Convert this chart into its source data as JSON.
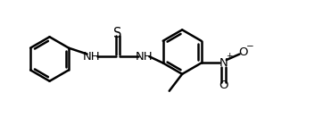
{
  "figsize": [
    3.62,
    1.32
  ],
  "dpi": 100,
  "bg_color": "#ffffff",
  "line_color": "#000000",
  "lw": 1.8,
  "font_size": 9.5,
  "xlim": [
    0.0,
    10.0
  ],
  "ylim": [
    0.0,
    3.8
  ]
}
